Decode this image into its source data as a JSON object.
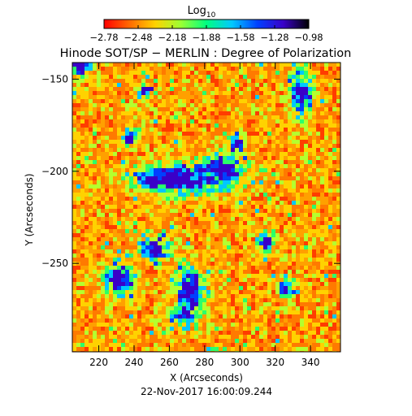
{
  "chart_data": {
    "type": "heatmap",
    "title": "Hinode SOT/SP − MERLIN : Degree of Polarization",
    "xlabel": "X (Arcseconds)",
    "ylabel": "Y (Arcseconds)",
    "xlim": [
      205,
      357
    ],
    "ylim": [
      -298,
      -141
    ],
    "x_ticks": [
      220,
      240,
      260,
      280,
      300,
      320,
      340
    ],
    "x_tick_labels": [
      "220",
      "240",
      "260",
      "280",
      "300",
      "320",
      "340"
    ],
    "y_ticks": [
      -150,
      -200,
      -250
    ],
    "y_tick_labels": [
      "−150",
      "−200",
      "−250"
    ],
    "colorbar": {
      "label_base": "Log",
      "label_sub": "10",
      "range": [
        -2.78,
        -0.98
      ],
      "ticks": [
        -2.78,
        -2.48,
        -2.18,
        -1.88,
        -1.58,
        -1.28,
        -0.98
      ],
      "tick_labels": [
        "−2.78",
        "−2.48",
        "−2.18",
        "−1.88",
        "−1.58",
        "−1.28",
        "−0.98"
      ]
    },
    "colormap": [
      "#ff0000",
      "#ff6a00",
      "#ffd200",
      "#9bff33",
      "#00ff80",
      "#00c8ff",
      "#0040ff",
      "#3a00c8",
      "#000000"
    ],
    "strong_regions": [
      {
        "x": 268,
        "y": -204,
        "rx": 26,
        "ry": 8
      },
      {
        "x": 290,
        "y": -200,
        "rx": 12,
        "ry": 9
      },
      {
        "x": 250,
        "y": -205,
        "rx": 9,
        "ry": 5
      },
      {
        "x": 272,
        "y": -265,
        "rx": 8,
        "ry": 13
      },
      {
        "x": 268,
        "y": -278,
        "rx": 9,
        "ry": 5
      },
      {
        "x": 252,
        "y": -242,
        "rx": 8,
        "ry": 6
      },
      {
        "x": 232,
        "y": -258,
        "rx": 8,
        "ry": 9
      },
      {
        "x": 335,
        "y": -158,
        "rx": 6,
        "ry": 12
      },
      {
        "x": 298,
        "y": -184,
        "rx": 4,
        "ry": 4
      },
      {
        "x": 238,
        "y": -182,
        "rx": 4,
        "ry": 4
      },
      {
        "x": 246,
        "y": -156,
        "rx": 4,
        "ry": 3
      },
      {
        "x": 210,
        "y": -143,
        "rx": 6,
        "ry": 5
      },
      {
        "x": 315,
        "y": -238,
        "rx": 4,
        "ry": 5
      },
      {
        "x": 326,
        "y": -264,
        "rx": 4,
        "ry": 4
      }
    ]
  },
  "footer": {
    "timestamp": "22-Nov-2017 16:00:09.244"
  }
}
